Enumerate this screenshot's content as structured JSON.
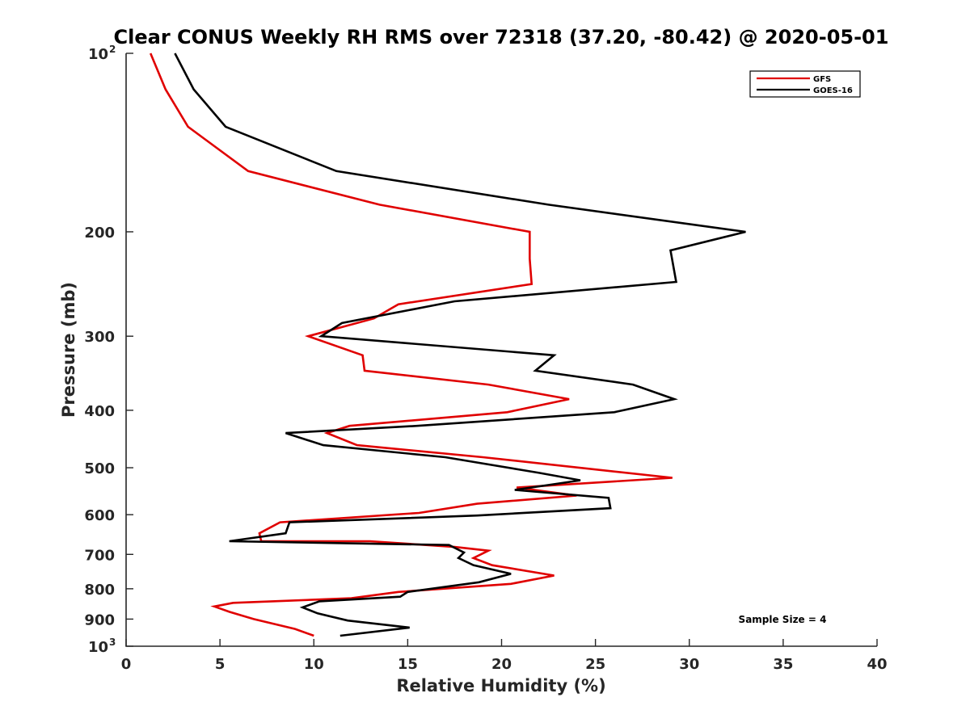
{
  "chart_data": {
    "type": "line",
    "title": "Clear CONUS Weekly RH RMS over 72318 (37.20, -80.42) @ 2020-05-01",
    "xlabel": "Relative Humidity (%)",
    "ylabel": "Pressure (mb)",
    "xlim": [
      0,
      40
    ],
    "ylim": [
      100,
      1000
    ],
    "y_scale": "log",
    "y_reversed": true,
    "grid": false,
    "legend_position": "top-right",
    "annotation": "Sample Size = 4",
    "x_ticks": [
      "0",
      "5",
      "10",
      "15",
      "20",
      "25",
      "30",
      "35",
      "40"
    ],
    "y_ticks": [
      {
        "value": 100,
        "base": "10",
        "exp": "2"
      },
      {
        "value": 200,
        "base": "200",
        "exp": ""
      },
      {
        "value": 300,
        "base": "300",
        "exp": ""
      },
      {
        "value": 400,
        "base": "400",
        "exp": ""
      },
      {
        "value": 500,
        "base": "500",
        "exp": ""
      },
      {
        "value": 600,
        "base": "600",
        "exp": ""
      },
      {
        "value": 700,
        "base": "700",
        "exp": ""
      },
      {
        "value": 800,
        "base": "800",
        "exp": ""
      },
      {
        "value": 900,
        "base": "900",
        "exp": ""
      },
      {
        "value": 1000,
        "base": "10",
        "exp": "3"
      }
    ],
    "series": [
      {
        "name": "GFS",
        "color": "#e00000",
        "points": [
          [
            1.3,
            100
          ],
          [
            2.1,
            115
          ],
          [
            3.3,
            133
          ],
          [
            6.5,
            158
          ],
          [
            13.5,
            180
          ],
          [
            21.5,
            200
          ],
          [
            21.5,
            222
          ],
          [
            21.6,
            245
          ],
          [
            14.5,
            265
          ],
          [
            13.2,
            280
          ],
          [
            9.7,
            300
          ],
          [
            12.6,
            323
          ],
          [
            12.7,
            343
          ],
          [
            19.3,
            362
          ],
          [
            23.6,
            383
          ],
          [
            20.3,
            403
          ],
          [
            11.9,
            425
          ],
          [
            10.7,
            437
          ],
          [
            12.3,
            458
          ],
          [
            19.0,
            480
          ],
          [
            29.1,
            520
          ],
          [
            20.8,
            540
          ],
          [
            24.0,
            557
          ],
          [
            18.7,
            575
          ],
          [
            15.6,
            596
          ],
          [
            8.2,
            618
          ],
          [
            7.1,
            645
          ],
          [
            7.2,
            665
          ],
          [
            13.0,
            665
          ],
          [
            17.5,
            680
          ],
          [
            19.3,
            690
          ],
          [
            18.5,
            710
          ],
          [
            19.5,
            730
          ],
          [
            22.8,
            760
          ],
          [
            20.5,
            785
          ],
          [
            14.5,
            810
          ],
          [
            12.0,
            830
          ],
          [
            5.7,
            845
          ],
          [
            4.7,
            857
          ],
          [
            5.5,
            875
          ],
          [
            6.8,
            900
          ],
          [
            9.0,
            935
          ],
          [
            10.0,
            960
          ]
        ]
      },
      {
        "name": "GOES-16",
        "color": "#000000",
        "points": [
          [
            2.6,
            100
          ],
          [
            3.6,
            115
          ],
          [
            5.3,
            133
          ],
          [
            11.2,
            158
          ],
          [
            22.5,
            180
          ],
          [
            33.0,
            200
          ],
          [
            29.0,
            215
          ],
          [
            29.3,
            243
          ],
          [
            17.5,
            262
          ],
          [
            11.5,
            285
          ],
          [
            10.4,
            300
          ],
          [
            22.8,
            323
          ],
          [
            21.8,
            343
          ],
          [
            27.0,
            362
          ],
          [
            29.2,
            383
          ],
          [
            26.0,
            403
          ],
          [
            15.5,
            425
          ],
          [
            8.5,
            437
          ],
          [
            10.5,
            458
          ],
          [
            17.0,
            480
          ],
          [
            22.0,
            510
          ],
          [
            24.2,
            525
          ],
          [
            20.7,
            545
          ],
          [
            25.7,
            562
          ],
          [
            25.8,
            585
          ],
          [
            18.7,
            602
          ],
          [
            8.7,
            618
          ],
          [
            8.5,
            645
          ],
          [
            5.5,
            665
          ],
          [
            17.2,
            675
          ],
          [
            18.0,
            695
          ],
          [
            17.7,
            710
          ],
          [
            18.5,
            730
          ],
          [
            20.5,
            755
          ],
          [
            18.8,
            780
          ],
          [
            15.0,
            810
          ],
          [
            14.6,
            825
          ],
          [
            10.3,
            840
          ],
          [
            9.4,
            860
          ],
          [
            10.2,
            880
          ],
          [
            11.8,
            905
          ],
          [
            15.1,
            930
          ],
          [
            11.4,
            960
          ]
        ]
      }
    ]
  }
}
